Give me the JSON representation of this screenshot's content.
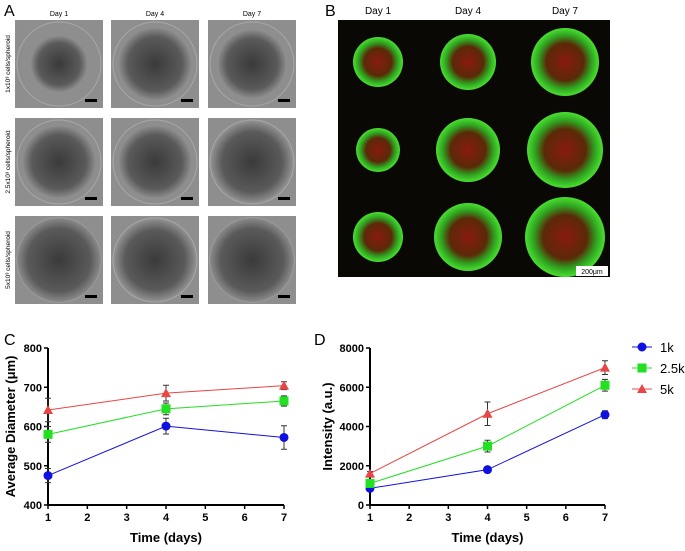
{
  "panel_a": {
    "label": "A",
    "columns": [
      "Day 1",
      "Day 4",
      "Day 7"
    ],
    "rows": [
      "1x10³ cells/spheroid",
      "2.5x10³ cells/spheroid",
      "5x10³ cells/spheroid"
    ]
  },
  "panel_b": {
    "label": "B",
    "columns": [
      "Day 1",
      "Day 4",
      "Day 7"
    ],
    "scale_bar": "200μm"
  },
  "chart_data": [
    {
      "panel": "C",
      "type": "line",
      "xlabel": "Time (days)",
      "ylabel": "Average Diameter (μm)",
      "xlim": [
        1,
        7
      ],
      "ylim": [
        400,
        800
      ],
      "xticks": [
        1,
        2,
        3,
        4,
        5,
        6,
        7
      ],
      "yticks": [
        400,
        500,
        600,
        700,
        800
      ],
      "x": [
        1,
        4,
        7
      ],
      "series": [
        {
          "name": "1k",
          "color": "#1010e0",
          "marker": "circle",
          "values": [
            475,
            601,
            572
          ],
          "errors": [
            18,
            20,
            30
          ]
        },
        {
          "name": "2.5k",
          "color": "#22e022",
          "marker": "square",
          "values": [
            580,
            645,
            665
          ],
          "errors": [
            20,
            15,
            13
          ]
        },
        {
          "name": "5k",
          "color": "#e84545",
          "marker": "triangle",
          "values": [
            642,
            685,
            704
          ],
          "errors": [
            30,
            20,
            10
          ]
        }
      ]
    },
    {
      "panel": "D",
      "type": "line",
      "xlabel": "Time (days)",
      "ylabel": "Intensity (a.u.)",
      "xlim": [
        1,
        7
      ],
      "ylim": [
        0,
        8000
      ],
      "xticks": [
        1,
        2,
        3,
        4,
        5,
        6,
        7
      ],
      "yticks": [
        0,
        2000,
        4000,
        6000,
        8000
      ],
      "x": [
        1,
        4,
        7
      ],
      "legend": "right",
      "series": [
        {
          "name": "1k",
          "color": "#1010e0",
          "marker": "circle",
          "values": [
            850,
            1800,
            4600
          ],
          "errors": [
            80,
            100,
            200
          ]
        },
        {
          "name": "2.5k",
          "color": "#22e022",
          "marker": "square",
          "values": [
            1100,
            3000,
            6100
          ],
          "errors": [
            100,
            300,
            300
          ]
        },
        {
          "name": "5k",
          "color": "#e84545",
          "marker": "triangle",
          "values": [
            1600,
            4650,
            7000
          ],
          "errors": [
            100,
            600,
            350
          ]
        }
      ]
    }
  ]
}
